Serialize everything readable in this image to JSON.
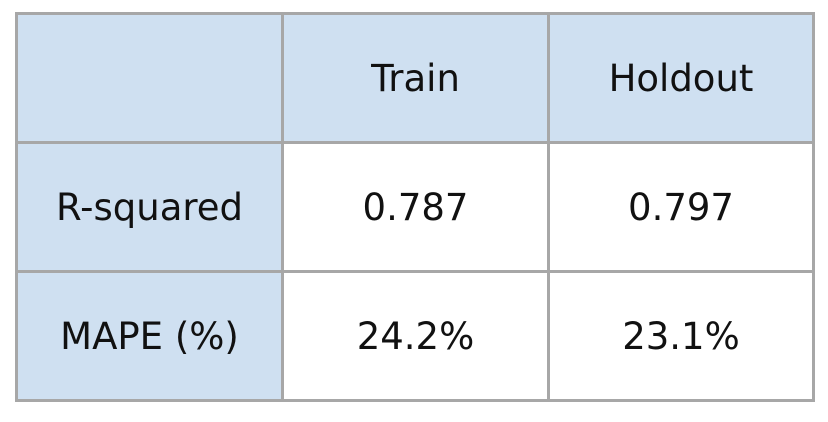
{
  "chart_data": {
    "type": "table",
    "columns": [
      "",
      "Train",
      "Holdout"
    ],
    "rows": [
      {
        "label": "R-squared",
        "values": [
          "0.787",
          "0.797"
        ]
      },
      {
        "label": "MAPE (%)",
        "values": [
          "24.2%",
          "23.1%"
        ]
      }
    ]
  },
  "colors": {
    "header_fill": "#cfe0f1",
    "cell_fill": "#ffffff",
    "border": "#a7a7a7",
    "text": "#111111"
  }
}
